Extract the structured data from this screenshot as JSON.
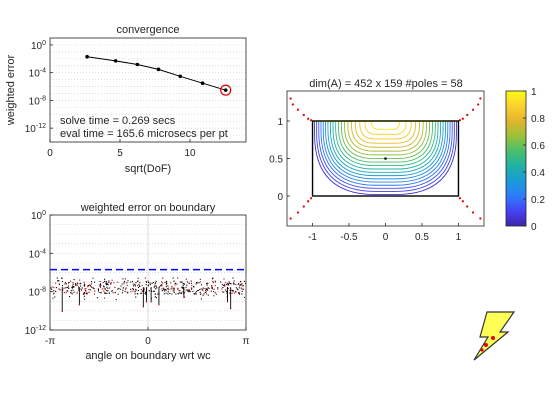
{
  "chart_data": [
    {
      "type": "line",
      "title": "convergence",
      "xlabel": "sqrt(DoF)",
      "ylabel": "weighted error",
      "xlim": [
        0,
        14
      ],
      "ylim": [
        1e-14,
        10.0
      ],
      "yscale": "log",
      "grid": "y-dotted",
      "xticks": [
        0,
        5,
        10
      ],
      "xtick_labels": [
        "0",
        "5",
        "10"
      ],
      "yticks": [
        1.0,
        0.0001,
        1e-08,
        1e-12
      ],
      "ytick_labels": [
        {
          "base": "10",
          "exp": "0"
        },
        {
          "base": "10",
          "exp": "-4"
        },
        {
          "base": "10",
          "exp": "-8"
        },
        {
          "base": "10",
          "exp": "-12"
        }
      ],
      "x": [
        2.65,
        4.69,
        6.24,
        7.75,
        9.3,
        10.9,
        12.55
      ],
      "y": [
        0.02,
        0.005,
        0.0015,
        0.0003,
        3e-05,
        3e-06,
        3e-07
      ],
      "marker": {
        "x": 12.55,
        "y": 3e-07,
        "color": "#e00000"
      },
      "annotations": [
        "solve time =  0.269 secs",
        "eval time = 165.6 microsecs per pt"
      ]
    },
    {
      "type": "scatter",
      "title": "weighted error on boundary",
      "xlabel": "angle on boundary wrt wc",
      "ylabel": "",
      "xlim": [
        -3.1416,
        3.1416
      ],
      "ylim": [
        1e-12,
        1.0
      ],
      "yscale": "log",
      "xtick_labels": [
        "-π",
        "0",
        "π"
      ],
      "ytick_labels": [
        {
          "base": "10",
          "exp": "0"
        },
        {
          "base": "10",
          "exp": "-4"
        },
        {
          "base": "10",
          "exp": "-8"
        },
        {
          "base": "10",
          "exp": "-12"
        }
      ],
      "threshold": {
        "y": 2e-06,
        "style": "dashed",
        "color": "#0000ff"
      },
      "spikes": [
        {
          "x": -2.75,
          "y": 1e-10
        },
        {
          "x": -2.2,
          "y": 5e-10
        },
        {
          "x": -0.15,
          "y": 3e-10
        },
        {
          "x": -0.05,
          "y": 1e-09
        },
        {
          "x": 0.1,
          "y": 1e-09
        },
        {
          "x": 0.35,
          "y": 5e-10
        },
        {
          "x": 1.15,
          "y": 3e-09
        },
        {
          "x": 2.55,
          "y": 1e-09
        },
        {
          "x": 2.65,
          "y": 2e-10
        }
      ],
      "band": {
        "y_low": 1e-09,
        "y_high": 3e-07,
        "typical": 3e-08,
        "point_count": "dense"
      },
      "color": "#8b0000"
    },
    {
      "type": "contour",
      "title": "dim(A) = 452 x 159  #poles = 58",
      "xlim": [
        -1.35,
        1.35
      ],
      "ylim": [
        -0.4,
        1.4
      ],
      "xticks": [
        -1,
        -0.5,
        0,
        0.5,
        1
      ],
      "xtick_labels": [
        "-1",
        "-0.5",
        "0",
        "0.5",
        "1"
      ],
      "yticks": [
        0,
        0.5,
        1
      ],
      "ytick_labels": [
        "0",
        "0.5",
        "1"
      ],
      "domain_rect": {
        "x": [
          -1,
          1
        ],
        "y": [
          0,
          1
        ]
      },
      "levels": [
        0.05,
        0.1,
        0.15,
        0.2,
        0.25,
        0.3,
        0.35,
        0.4,
        0.45,
        0.5,
        0.55,
        0.6,
        0.65,
        0.7,
        0.75,
        0.8,
        0.85,
        0.9,
        0.95
      ],
      "center_point": {
        "x": 0,
        "y": 0.5
      },
      "poles": [
        [
          -1.3,
          1.3
        ],
        [
          -1.27,
          1.22
        ],
        [
          -1.2,
          1.15
        ],
        [
          -1.12,
          1.08
        ],
        [
          -1.06,
          1.03
        ],
        [
          -1.02,
          1.01
        ],
        [
          1.3,
          1.3
        ],
        [
          1.27,
          1.22
        ],
        [
          1.2,
          1.15
        ],
        [
          1.12,
          1.08
        ],
        [
          1.06,
          1.03
        ],
        [
          1.02,
          1.01
        ],
        [
          -1.3,
          -0.3
        ],
        [
          -1.2,
          -0.22
        ],
        [
          -1.12,
          -0.14
        ],
        [
          -1.06,
          -0.07
        ],
        [
          -1.02,
          -0.03
        ],
        [
          1.3,
          -0.3
        ],
        [
          1.2,
          -0.22
        ],
        [
          1.12,
          -0.14
        ],
        [
          1.06,
          -0.07
        ],
        [
          1.02,
          -0.03
        ]
      ],
      "pole_color": "#e00000",
      "colorbar": {
        "min": 0,
        "max": 1,
        "ticks": [
          0,
          0.2,
          0.4,
          0.6,
          0.8,
          1
        ],
        "tick_labels": [
          "0",
          "0.2",
          "0.4",
          "0.6",
          "0.8",
          "1"
        ],
        "colormap": [
          "#3e26a8",
          "#4743f5",
          "#2c7cfc",
          "#1b9ad9",
          "#1fb2a5",
          "#4abf6c",
          "#9cc039",
          "#e1b52e",
          "#fcd12f",
          "#f9fb15"
        ]
      }
    }
  ],
  "logo": {
    "name": "lightning-bolt-logo",
    "fill": "#ffff55",
    "stroke": "#333333"
  }
}
